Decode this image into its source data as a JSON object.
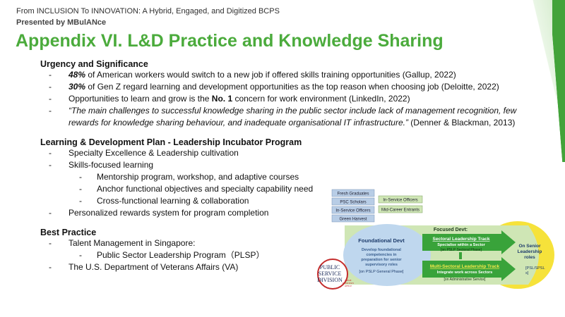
{
  "header": {
    "line1": "From INCLUSION To INNOVATION: A Hybrid, Engaged, and Digitized BCPS",
    "line2": "Presented by MBulANce"
  },
  "title": "Appendix VI. L&D Practice and Knowledge Sharing",
  "colors": {
    "title": "#4bab3c",
    "accent": "#3f8f1a"
  },
  "sections": {
    "urgency": {
      "heading": "Urgency and Significance",
      "b1_bold": "48%",
      "b1_rest": " of American workers would switch to a new job if offered skills training opportunities (Gallup, 2022)",
      "b2_bold": "30%",
      "b2_rest": " of Gen Z regard learning and development opportunities as the top reason when choosing job (Deloitte, 2022)",
      "b3_pre": "Opportunities to learn and grow is the ",
      "b3_bold": "No. 1",
      "b3_rest": " concern for work environment (LinkedIn, 2022)",
      "b4_italic": "“The main challenges to successful knowledge sharing in the public sector include lack of management recognition, few rewards for knowledge sharing behaviour, and inadequate organisational IT infrastructure.”",
      "b4_rest": " (Denner & Blackman, 2013)"
    },
    "plan": {
      "heading": "Learning & Development Plan - Leadership Incubator Program",
      "b1": "Specialty Excellence & Leadership cultivation",
      "b2": "Skills-focused learning",
      "b2a": "Mentorship program, workshop, and adaptive courses",
      "b2b": "Anchor functional objectives and specialty capability need",
      "b2c": "Cross-functional learning & collaboration",
      "b3": "Personalized rewards system for program completion"
    },
    "best": {
      "heading": "Best Practice",
      "b1": "Talent Management in Singapore:",
      "b1a": "Public Sector Leadership Program（PLSP）",
      "b2": "The U.S. Department of Veterans Affairs (VA)"
    }
  },
  "dash": "-",
  "diagram": {
    "entry_left": [
      "Fresh Graduates",
      "PSC Scholars",
      "In-Service Officers",
      "Green Harvest"
    ],
    "entry_right": [
      "In-Service Officers",
      "Mid-Career Entrants"
    ],
    "foundational_title": "Foundational Devt",
    "foundational_desc": [
      "Develop foundational",
      "competencies in",
      "preparation for senior",
      "supervisory roles"
    ],
    "foundational_phase": "[on PSLP General Phase]",
    "focused_title": "Focused Devt:",
    "sectoral_title": "Sectoral Leadership Track",
    "sectoral_sub": "Specialise within a Sector",
    "sectoral_phase": "[on PSLP Sectoral Phase]",
    "multi_title": "Multi-Sectoral Leadership Track",
    "multi_sub": "Integrate work across Sectors",
    "multi_phase": "[on Administrative Service]",
    "senior_title": [
      "On Senior",
      "Leadership",
      "roles"
    ],
    "senior_phase": [
      "[PSL/SPSL",
      "s]"
    ]
  },
  "logo": {
    "lines": [
      "PUBLIC",
      "SERVICE",
      "DIVISION"
    ],
    "small": [
      "PRIME",
      "MINISTER'S",
      "OFFICE"
    ]
  }
}
